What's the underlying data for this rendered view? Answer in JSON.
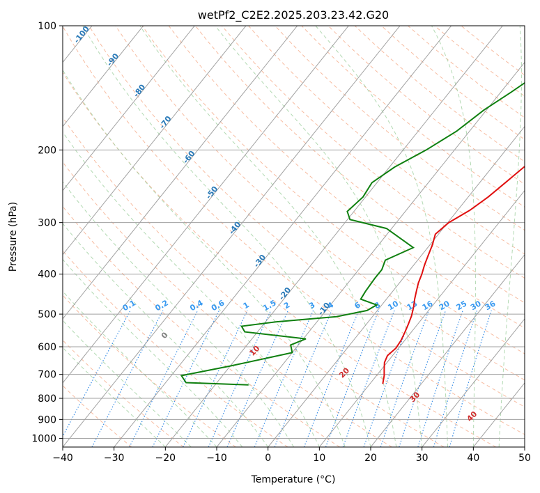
{
  "chart_data": {
    "type": "line",
    "title": "wetPf2_C2E2.2025.203.23.42.G20",
    "xlabel": "Temperature (°C)",
    "ylabel": "Pressure (hPa)",
    "xlim": [
      -40,
      50
    ],
    "ylim": [
      1050,
      100
    ],
    "y_scale": "log",
    "skew": "skew-T log-P diagram",
    "x_ticks": [
      -40,
      -30,
      -20,
      -10,
      0,
      10,
      20,
      30,
      40,
      50
    ],
    "y_ticks": [
      1000,
      900,
      800,
      700,
      600,
      500,
      400,
      300,
      200,
      100
    ],
    "grid": true,
    "colors": {
      "temperature": "#e01010",
      "dewpoint": "#108010",
      "isotherm": "#a0a0a0",
      "dry_adiabat": "#f4a582",
      "moist_adiabat": "#9fd09f",
      "mixing_ratio": "#3a8ee6",
      "isotherm_label": "#2a7ab8",
      "mixing_label": "#3a9af0",
      "adiabat_label": "#d03030"
    },
    "series": [
      {
        "role": "temperature",
        "points": [
          [
            12.5,
            738
          ],
          [
            11.5,
            705
          ],
          [
            10.5,
            680
          ],
          [
            9.5,
            655
          ],
          [
            9.0,
            630
          ],
          [
            9.5,
            605
          ],
          [
            9.3,
            580
          ],
          [
            8.8,
            555
          ],
          [
            8.2,
            530
          ],
          [
            7.5,
            505
          ],
          [
            6.5,
            480
          ],
          [
            5.5,
            460
          ],
          [
            4.6,
            440
          ],
          [
            3.7,
            420
          ],
          [
            3.0,
            400
          ],
          [
            2.1,
            380
          ],
          [
            1.3,
            360
          ],
          [
            0.5,
            340
          ],
          [
            -0.6,
            320
          ],
          [
            0.2,
            300
          ],
          [
            2.4,
            280
          ],
          [
            3.9,
            260
          ],
          [
            5.0,
            240
          ],
          [
            6.2,
            220
          ],
          [
            7.8,
            200
          ],
          [
            9.8,
            180
          ],
          [
            12.2,
            160
          ],
          [
            14.0,
            145
          ],
          [
            15.5,
            130
          ],
          [
            17.0,
            120
          ],
          [
            19.0,
            112
          ],
          [
            21.4,
            103
          ],
          [
            22.0,
            100
          ]
        ]
      },
      {
        "role": "dewpoint",
        "points": [
          [
            -13.5,
            742
          ],
          [
            -26.0,
            733
          ],
          [
            -28.0,
            705
          ],
          [
            -20.0,
            668
          ],
          [
            -10.0,
            620
          ],
          [
            -11.5,
            594
          ],
          [
            -9.5,
            574
          ],
          [
            -22.5,
            552
          ],
          [
            -24.0,
            535
          ],
          [
            -18.0,
            522
          ],
          [
            -7.0,
            507
          ],
          [
            -2.0,
            490
          ],
          [
            -1.0,
            475
          ],
          [
            -5.0,
            460
          ],
          [
            -5.3,
            440
          ],
          [
            -5.5,
            410
          ],
          [
            -5.5,
            390
          ],
          [
            -6.3,
            370
          ],
          [
            -2.8,
            345
          ],
          [
            -11.0,
            310
          ],
          [
            -19.5,
            295
          ],
          [
            -21.3,
            282
          ],
          [
            -20.5,
            260
          ],
          [
            -21.0,
            240
          ],
          [
            -19.0,
            220
          ],
          [
            -15.5,
            200
          ],
          [
            -12.5,
            180
          ],
          [
            -10.5,
            160
          ],
          [
            -8.0,
            145
          ],
          [
            -5.5,
            130
          ],
          [
            -2.5,
            118
          ],
          [
            1.0,
            105
          ],
          [
            2.8,
            100
          ]
        ]
      }
    ],
    "isotherm_labels": [
      "-100",
      "-90",
      "-80",
      "-70",
      "-60",
      "-50",
      "-40",
      "-30",
      "-20",
      "-10"
    ],
    "mixing_ratio_labels": [
      "0.1",
      "0.2",
      "0.4",
      "0.6",
      "1",
      "1.5",
      "2",
      "3",
      "4",
      "6",
      "8",
      "10",
      "13",
      "16",
      "20",
      "25",
      "30",
      "36"
    ],
    "adiabat_labels": [
      "0",
      "10",
      "20",
      "30",
      "40"
    ]
  }
}
